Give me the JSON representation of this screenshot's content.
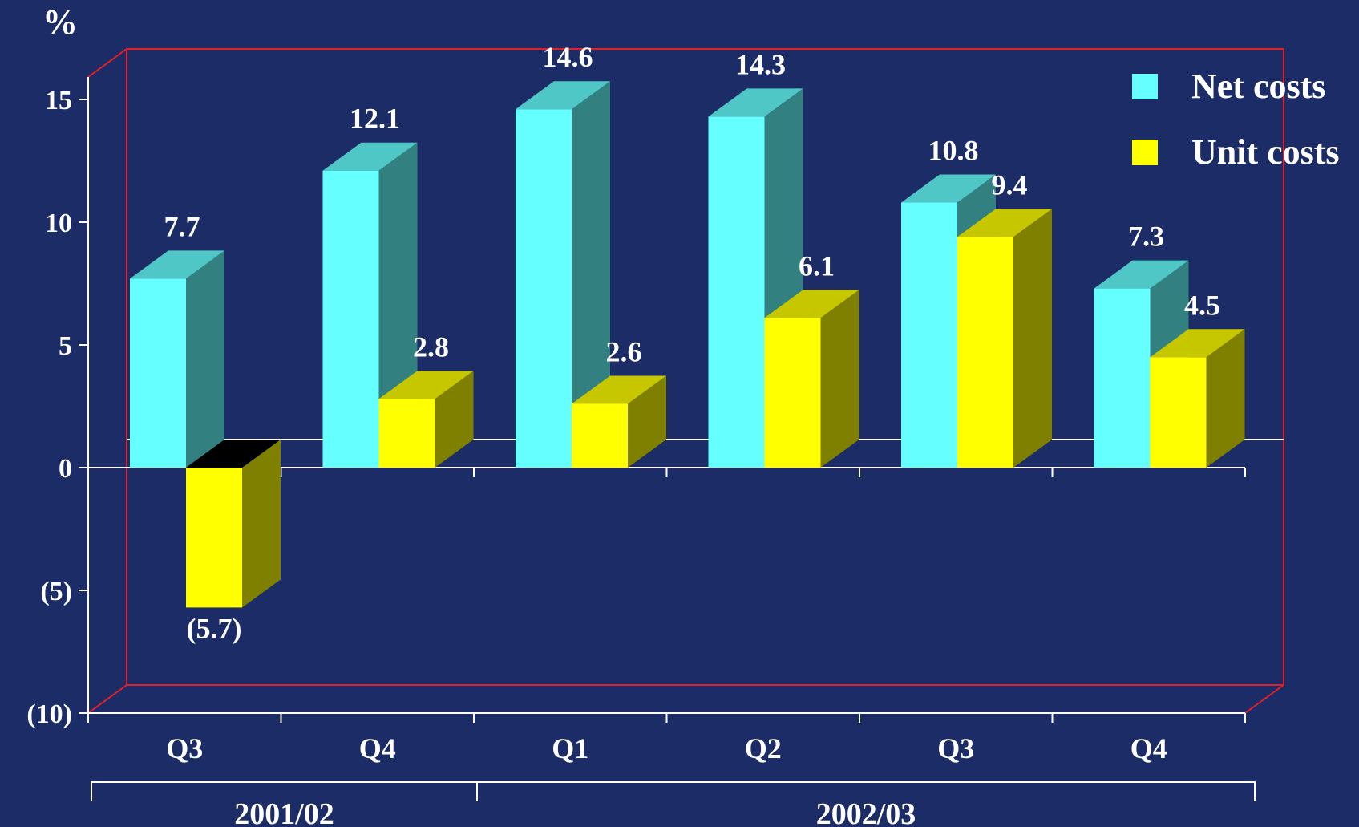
{
  "chart_data": {
    "type": "bar",
    "unit_label": "%",
    "categories": [
      "Q3",
      "Q4",
      "Q1",
      "Q2",
      "Q3",
      "Q4"
    ],
    "groups": [
      {
        "label": "2001/02",
        "span": 2
      },
      {
        "label": "2002/03",
        "span": 4
      }
    ],
    "series": [
      {
        "name": "Net costs",
        "color": "#66ffff",
        "values": [
          7.7,
          12.1,
          14.6,
          14.3,
          10.8,
          7.3
        ],
        "value_labels": [
          "7.7",
          "12.1",
          "14.6",
          "14.3",
          "10.8",
          "7.3"
        ]
      },
      {
        "name": "Unit costs",
        "color": "#ffff00",
        "values": [
          -5.7,
          2.8,
          2.6,
          6.1,
          9.4,
          4.5
        ],
        "value_labels": [
          "(5.7)",
          "2.8",
          "2.6",
          "6.1",
          "9.4",
          "4.5"
        ]
      }
    ],
    "yticks": [
      15,
      10,
      5,
      0,
      -5,
      -10
    ],
    "ytick_labels": [
      "15",
      "10",
      "5",
      "0",
      "(5)",
      "(10)"
    ],
    "ylim": [
      -10,
      15
    ],
    "legend_position": "top-right",
    "bar_style": "3d"
  }
}
